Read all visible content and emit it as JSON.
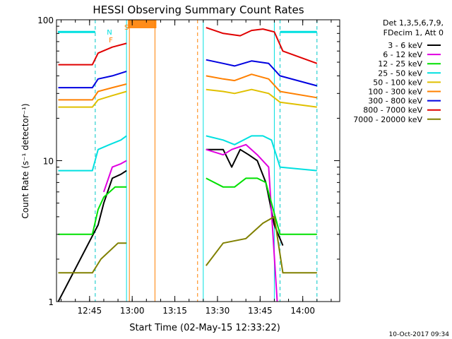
{
  "chart_data": {
    "type": "line",
    "title": "HESSI Observing Summary Count Rates",
    "xlabel": "Start Time (02-May-15 12:33:22)",
    "ylabel": "Count Rate (s⁻¹ detector⁻¹)",
    "yscale": "log",
    "ylim": [
      1,
      100
    ],
    "xlim": [
      "12:33:22",
      "14:13:00"
    ],
    "x_ticks": [
      "12:45",
      "13:00",
      "13:15",
      "13:30",
      "13:45",
      "14:00"
    ],
    "y_ticks": [
      "1",
      "10",
      "100"
    ],
    "grid": false,
    "legend_position": "top-right",
    "legend_header": [
      "Det 1,3,5,6,7,9,",
      "FDecim 1, Att 0"
    ],
    "markers": [
      {
        "label": "N",
        "color": "#00e0e0"
      },
      {
        "label": "F",
        "color": "#ff8000"
      },
      {
        "label": "S",
        "color": "#ff8000"
      }
    ],
    "series": [
      {
        "name": "3 - 6 keV",
        "color": "#000000",
        "points": [
          [
            "12:34",
            1
          ],
          [
            "12:48",
            3.5
          ],
          [
            "12:50",
            5
          ],
          [
            "12:53",
            7.5
          ],
          [
            "12:56",
            8
          ],
          [
            "12:58",
            8.5
          ],
          [
            "13:08",
            null
          ],
          [
            "13:24",
            null
          ],
          [
            "13:26",
            12
          ],
          [
            "13:32",
            12
          ],
          [
            "13:35",
            9
          ],
          [
            "13:38",
            12
          ],
          [
            "13:41",
            11
          ],
          [
            "13:44",
            10
          ],
          [
            "13:47",
            7
          ],
          [
            "13:50",
            3.5
          ],
          [
            "13:53",
            2.5
          ]
        ]
      },
      {
        "name": "6 - 12 keV",
        "color": "#e000e0",
        "points": [
          [
            "12:50",
            6
          ],
          [
            "12:53",
            9
          ],
          [
            "12:56",
            9.5
          ],
          [
            "12:58",
            10
          ],
          [
            "13:08",
            null
          ],
          [
            "13:24",
            null
          ],
          [
            "13:26",
            12
          ],
          [
            "13:32",
            11
          ],
          [
            "13:35",
            12
          ],
          [
            "13:40",
            13
          ],
          [
            "13:44",
            11
          ],
          [
            "13:48",
            9
          ],
          [
            "13:51",
            1
          ]
        ]
      },
      {
        "name": "12 - 25 keV",
        "color": "#00e000",
        "points": [
          [
            "12:34",
            3
          ],
          [
            "12:46",
            3
          ],
          [
            "12:48",
            4.5
          ],
          [
            "12:50",
            5.5
          ],
          [
            "12:54",
            6.5
          ],
          [
            "12:58",
            6.5
          ],
          [
            "13:08",
            null
          ],
          [
            "13:24",
            null
          ],
          [
            "13:26",
            7.5
          ],
          [
            "13:32",
            6.5
          ],
          [
            "13:36",
            6.5
          ],
          [
            "13:40",
            7.5
          ],
          [
            "13:44",
            7.5
          ],
          [
            "13:47",
            7
          ],
          [
            "13:52",
            3
          ],
          [
            "14:05",
            3
          ]
        ]
      },
      {
        "name": "25 - 50 keV",
        "color": "#00e0e0",
        "points": [
          [
            "12:34",
            8.5
          ],
          [
            "12:46",
            8.5
          ],
          [
            "12:48",
            12
          ],
          [
            "12:52",
            13
          ],
          [
            "12:56",
            14
          ],
          [
            "12:58",
            15
          ],
          [
            "13:08",
            null
          ],
          [
            "13:24",
            null
          ],
          [
            "13:26",
            15
          ],
          [
            "13:32",
            14
          ],
          [
            "13:36",
            13
          ],
          [
            "13:42",
            15
          ],
          [
            "13:46",
            15
          ],
          [
            "13:49",
            14
          ],
          [
            "13:52",
            9
          ],
          [
            "14:05",
            8.5
          ]
        ]
      },
      {
        "name": "50 - 100 keV",
        "color": "#e0c000",
        "points": [
          [
            "12:34",
            24
          ],
          [
            "12:46",
            24
          ],
          [
            "12:48",
            27
          ],
          [
            "12:53",
            29
          ],
          [
            "12:58",
            31
          ],
          [
            "13:08",
            null
          ],
          [
            "13:24",
            null
          ],
          [
            "13:26",
            32
          ],
          [
            "13:32",
            31
          ],
          [
            "13:36",
            30
          ],
          [
            "13:42",
            32
          ],
          [
            "13:48",
            30
          ],
          [
            "13:52",
            26
          ],
          [
            "14:05",
            24
          ]
        ]
      },
      {
        "name": "100 - 300 keV",
        "color": "#ff8000",
        "points": [
          [
            "12:34",
            27
          ],
          [
            "12:46",
            27
          ],
          [
            "12:48",
            31
          ],
          [
            "12:53",
            33
          ],
          [
            "12:58",
            35
          ],
          [
            "13:08",
            null
          ],
          [
            "13:24",
            null
          ],
          [
            "13:26",
            40
          ],
          [
            "13:32",
            38
          ],
          [
            "13:36",
            37
          ],
          [
            "13:42",
            41
          ],
          [
            "13:48",
            38
          ],
          [
            "13:52",
            31
          ],
          [
            "14:05",
            28
          ]
        ]
      },
      {
        "name": "300 - 800 keV",
        "color": "#0000e0",
        "points": [
          [
            "12:34",
            33
          ],
          [
            "12:46",
            33
          ],
          [
            "12:48",
            38
          ],
          [
            "12:53",
            40
          ],
          [
            "12:58",
            43
          ],
          [
            "13:08",
            null
          ],
          [
            "13:24",
            null
          ],
          [
            "13:26",
            52
          ],
          [
            "13:32",
            49
          ],
          [
            "13:36",
            47
          ],
          [
            "13:42",
            51
          ],
          [
            "13:48",
            49
          ],
          [
            "13:52",
            40
          ],
          [
            "14:05",
            34
          ]
        ]
      },
      {
        "name": "800 - 7000 keV",
        "color": "#e00000",
        "points": [
          [
            "12:34",
            48
          ],
          [
            "12:46",
            48
          ],
          [
            "12:48",
            58
          ],
          [
            "12:53",
            64
          ],
          [
            "12:58",
            68
          ],
          [
            "13:08",
            null
          ],
          [
            "13:24",
            null
          ],
          [
            "13:26",
            88
          ],
          [
            "13:32",
            80
          ],
          [
            "13:38",
            77
          ],
          [
            "13:42",
            84
          ],
          [
            "13:46",
            86
          ],
          [
            "13:50",
            82
          ],
          [
            "13:53",
            60
          ],
          [
            "14:05",
            49
          ]
        ]
      },
      {
        "name": "7000 - 20000 keV",
        "color": "#808000",
        "points": [
          [
            "12:34",
            1.6
          ],
          [
            "12:46",
            1.6
          ],
          [
            "12:49",
            2
          ],
          [
            "12:55",
            2.6
          ],
          [
            "12:58",
            2.6
          ],
          [
            "13:08",
            null
          ],
          [
            "13:24",
            null
          ],
          [
            "13:26",
            1.8
          ],
          [
            "13:32",
            2.6
          ],
          [
            "13:40",
            2.8
          ],
          [
            "13:46",
            3.6
          ],
          [
            "13:50",
            4
          ],
          [
            "13:53",
            1.6
          ],
          [
            "14:05",
            1.6
          ]
        ]
      }
    ]
  },
  "footer": {
    "timestamp": "10-Oct-2017 09:34"
  }
}
